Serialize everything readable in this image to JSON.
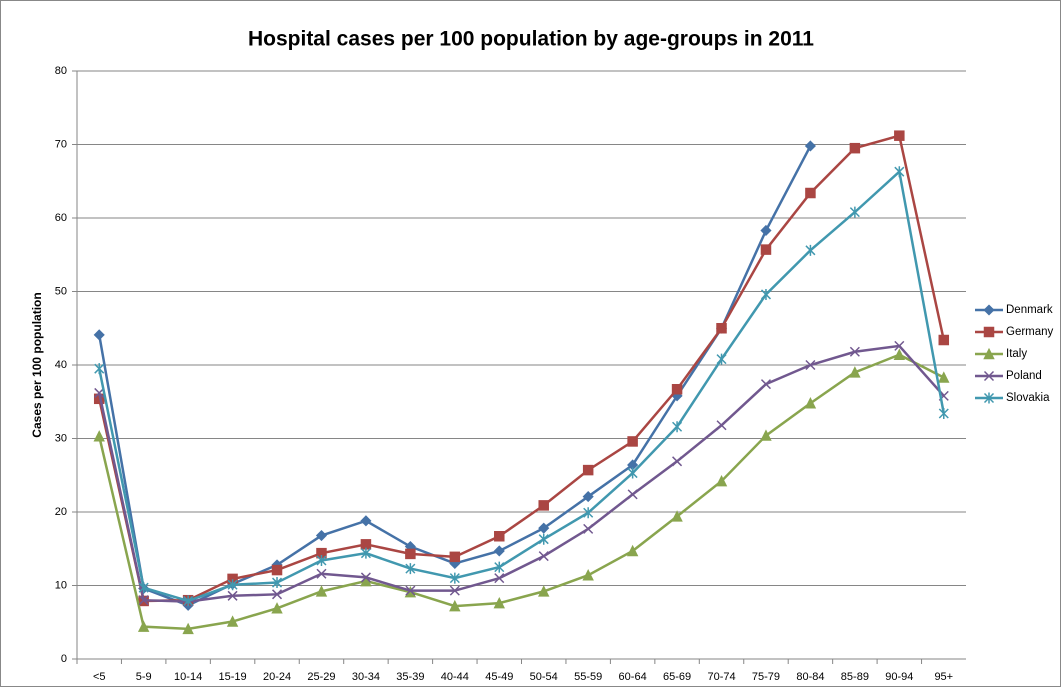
{
  "chart_data": {
    "type": "line",
    "title": "Hospital cases per 100 population by age-groups in 2011",
    "y_label": "Cases per 100 population",
    "categories": [
      "<5",
      "5-9",
      "10-14",
      "15-19",
      "20-24",
      "25-29",
      "30-34",
      "35-39",
      "40-44",
      "45-49",
      "50-54",
      "55-59",
      "60-64",
      "65-69",
      "70-74",
      "75-79",
      "80-84",
      "85-89",
      "90-94",
      "95+"
    ],
    "series": [
      {
        "name": "Denmark",
        "color": "#4572a7",
        "marker": "diamond",
        "values": [
          44.1,
          9.6,
          7.3,
          10.2,
          12.8,
          16.8,
          18.8,
          15.3,
          13.0,
          14.7,
          17.8,
          22.1,
          26.4,
          35.8,
          45.0,
          58.3,
          69.8,
          null,
          null,
          null
        ]
      },
      {
        "name": "Germany",
        "color": "#aa4643",
        "marker": "square",
        "values": [
          35.4,
          7.9,
          8.0,
          10.9,
          12.1,
          14.4,
          15.6,
          14.3,
          13.9,
          16.7,
          20.9,
          25.7,
          29.6,
          36.7,
          45.0,
          55.7,
          63.4,
          69.5,
          71.2,
          43.4
        ]
      },
      {
        "name": "Italy",
        "color": "#89a54e",
        "marker": "triangle",
        "values": [
          30.3,
          4.4,
          4.1,
          5.1,
          6.9,
          9.2,
          10.6,
          9.1,
          7.2,
          7.6,
          9.2,
          11.4,
          14.7,
          19.4,
          24.2,
          30.4,
          34.8,
          39.0,
          41.4,
          38.3
        ]
      },
      {
        "name": "Poland",
        "color": "#71588f",
        "marker": "x",
        "values": [
          36.2,
          8.0,
          7.8,
          8.6,
          8.8,
          11.6,
          11.1,
          9.3,
          9.3,
          11.0,
          14.0,
          17.7,
          22.4,
          26.9,
          31.8,
          37.4,
          40.0,
          41.8,
          42.6,
          35.8
        ]
      },
      {
        "name": "Slovakia",
        "color": "#4198af",
        "marker": "star",
        "values": [
          39.5,
          9.7,
          7.9,
          10.1,
          10.4,
          13.4,
          14.4,
          12.3,
          11.0,
          12.5,
          16.3,
          19.9,
          25.3,
          31.6,
          40.8,
          49.6,
          55.6,
          60.8,
          66.3,
          33.4
        ]
      }
    ],
    "ylim": [
      0,
      80
    ],
    "yticks": [
      0,
      10,
      20,
      30,
      40,
      50,
      60,
      70,
      80
    ],
    "grid": true,
    "legend": "right"
  }
}
